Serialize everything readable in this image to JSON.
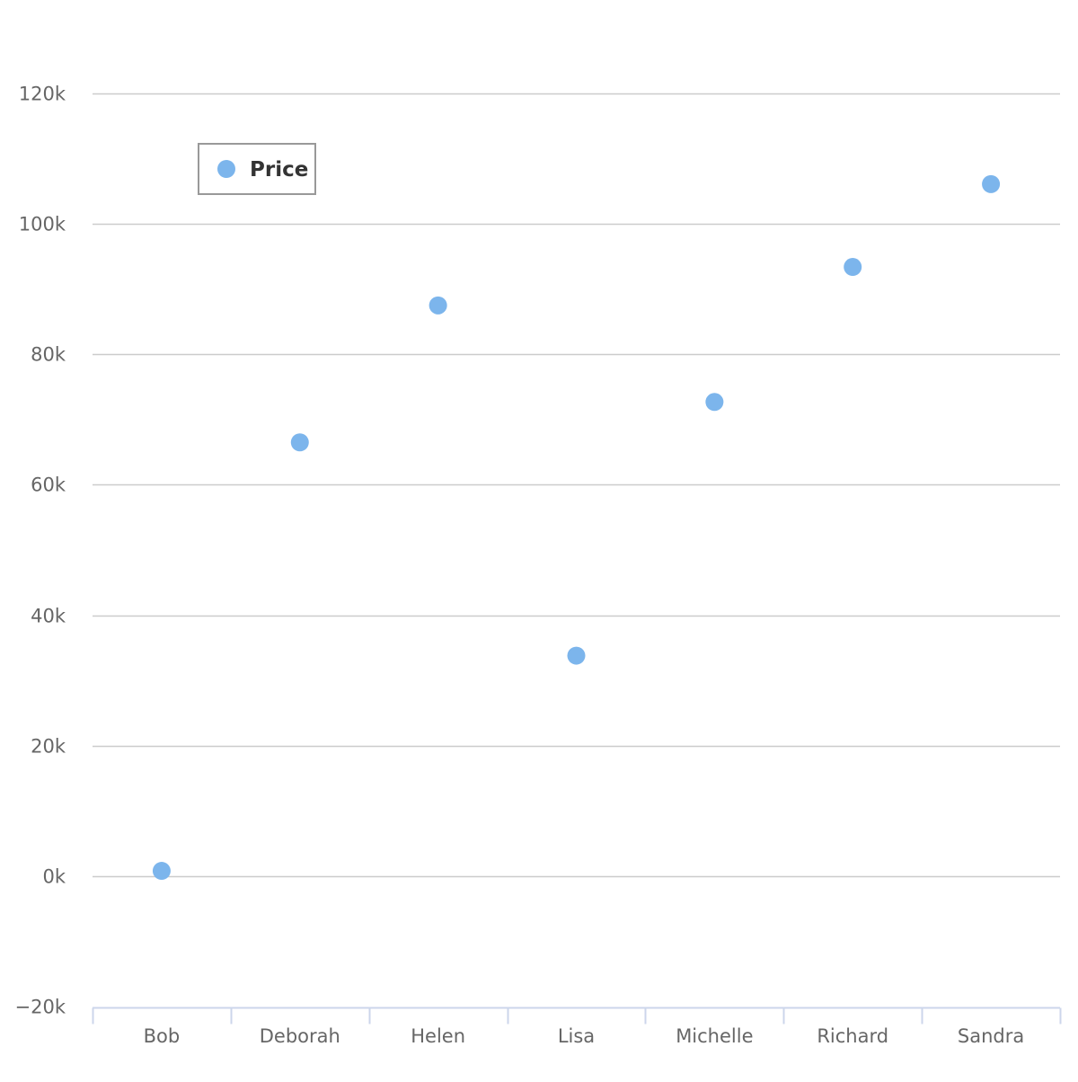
{
  "chart_data": {
    "type": "scatter",
    "categories": [
      "Bob",
      "Deborah",
      "Helen",
      "Lisa",
      "Michelle",
      "Richard",
      "Sandra"
    ],
    "series": [
      {
        "name": "Price",
        "color": "#7cb5ec",
        "values": [
          800,
          66500,
          87500,
          33800,
          72700,
          93400,
          106100
        ]
      }
    ],
    "ylim": [
      -20000,
      120000
    ],
    "yticks": [
      -20000,
      0,
      20000,
      40000,
      60000,
      80000,
      100000,
      120000
    ],
    "ytick_labels": [
      "−20k",
      "0k",
      "20k",
      "40k",
      "60k",
      "80k",
      "100k",
      "120k"
    ],
    "grid": true,
    "legend_position": "top-left",
    "title": "",
    "xlabel": "",
    "ylabel": ""
  },
  "colors": {
    "grid": "#cccccc",
    "axis": "#ccd6eb",
    "label": "#666666",
    "legend_border": "#999999"
  }
}
